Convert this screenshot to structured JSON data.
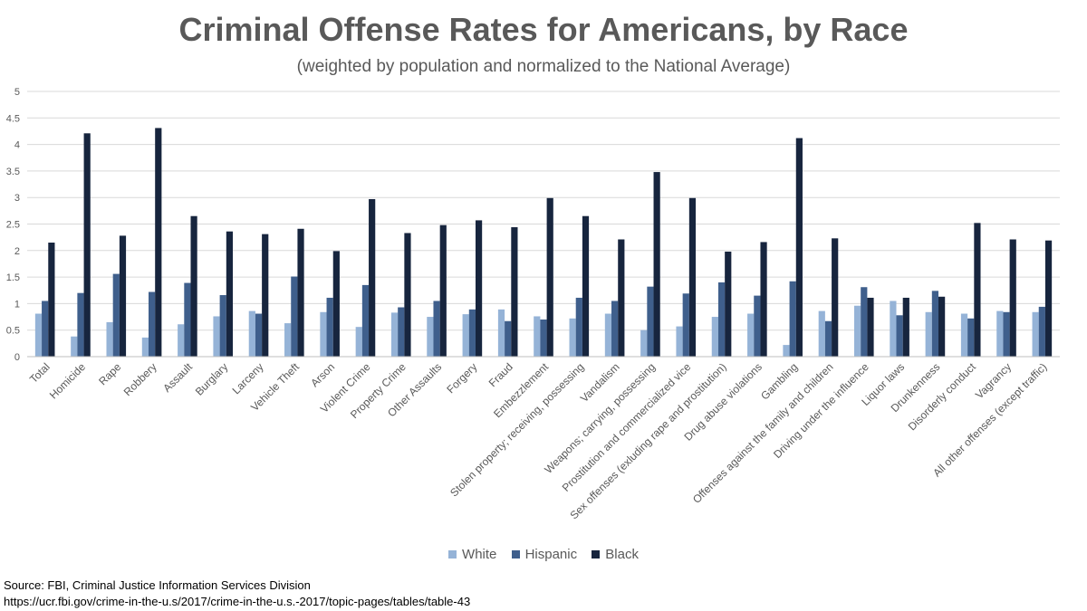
{
  "chart_data": {
    "type": "bar",
    "title": "Criminal Offense Rates for Americans, by Race",
    "subtitle": "(weighted by population and normalized to the National Average)",
    "ylim": [
      0,
      5
    ],
    "yticks": [
      "0",
      "0.5",
      "1",
      "1.5",
      "2",
      "2.5",
      "3",
      "3.5",
      "4",
      "4.5",
      "5"
    ],
    "ytick_values": [
      0,
      0.5,
      1,
      1.5,
      2,
      2.5,
      3,
      3.5,
      4,
      4.5,
      5
    ],
    "grid": true,
    "legend_position": "bottom",
    "categories": [
      "Total",
      "Homicide",
      "Rape",
      "Robbery",
      "Assault",
      "Burglary",
      "Larceny",
      "Vehicle Theft",
      "Arson",
      "Violent Crime",
      "Property Crime",
      "Other Assaults",
      "Forgery",
      "Fraud",
      "Embezzlement",
      "Stolen property; receiving, possessing",
      "Vandalism",
      "Weapons; carrying, possessing",
      "Prostitution and commercialized vice",
      "Sex offenses (exluding rape and prostitution)",
      "Drug abuse violations",
      "Gambling",
      "Offenses against the family and children",
      "Driving under the influence",
      "Liquor laws",
      "Drunkenness",
      "Disorderly conduct",
      "Vagrancy",
      "All other offenses (except traffic)"
    ],
    "series": [
      {
        "name": "White",
        "color": "#95b3d7",
        "values": [
          0.81,
          0.38,
          0.65,
          0.36,
          0.61,
          0.76,
          0.86,
          0.63,
          0.84,
          0.56,
          0.83,
          0.75,
          0.8,
          0.89,
          0.76,
          0.72,
          0.81,
          0.5,
          0.57,
          0.75,
          0.81,
          0.22,
          0.86,
          0.96,
          1.05,
          0.84,
          0.81,
          0.86,
          0.84
        ]
      },
      {
        "name": "Hispanic",
        "color": "#3f5f8c",
        "values": [
          1.05,
          1.2,
          1.56,
          1.22,
          1.39,
          1.16,
          0.81,
          1.51,
          1.11,
          1.35,
          0.93,
          1.05,
          0.89,
          0.67,
          0.7,
          1.11,
          1.05,
          1.32,
          1.19,
          1.4,
          1.15,
          1.42,
          0.67,
          1.31,
          0.78,
          1.24,
          0.72,
          0.84,
          0.94
        ]
      },
      {
        "name": "Black",
        "color": "#17253e",
        "values": [
          2.15,
          4.21,
          2.28,
          4.31,
          2.65,
          2.36,
          2.31,
          2.41,
          1.99,
          2.97,
          2.33,
          2.48,
          2.57,
          2.44,
          2.99,
          2.65,
          2.21,
          3.48,
          2.99,
          1.98,
          2.16,
          4.12,
          2.23,
          1.11,
          1.11,
          1.13,
          2.52,
          2.21,
          2.19
        ]
      }
    ],
    "axis_color": "#bfbfbf",
    "grid_color": "#d9d9d9"
  },
  "legend": [
    "White",
    "Hispanic",
    "Black"
  ],
  "source": {
    "line1": "Source: FBI, Criminal Justice Information Services Division",
    "line2": "https://ucr.fbi.gov/crime-in-the-u.s/2017/crime-in-the-u.s.-2017/topic-pages/tables/table-43"
  }
}
